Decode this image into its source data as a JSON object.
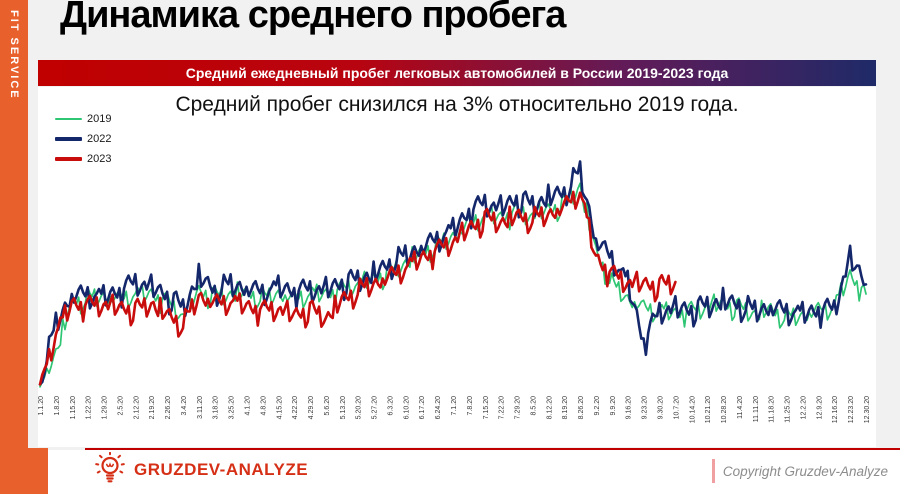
{
  "sidebar": {
    "brand": "FIT SERVICE"
  },
  "header": {
    "title": "Динамика среднего пробега"
  },
  "banner": {
    "text": "Средний ежедневный пробег легковых автомобилей в России 2019-2023 года"
  },
  "subtitle": "Средний пробег снизился на 3% относительно 2019 года.",
  "chart_data": {
    "type": "line",
    "title": "Средний ежедневный пробег легковых автомобилей в России 2019-2023 года",
    "x_labels": [
      "1.1.20",
      "1.8.20",
      "1.15.20",
      "1.22.20",
      "1.29.20",
      "2.5.20",
      "2.12.20",
      "2.19.20",
      "2.26.20",
      "3.4.20",
      "3.11.20",
      "3.18.20",
      "3.25.20",
      "4.1.20",
      "4.8.20",
      "4.15.20",
      "4.22.20",
      "4.29.20",
      "5.6.20",
      "5.13.20",
      "5.20.20",
      "5.27.20",
      "6.3.20",
      "6.10.20",
      "6.17.20",
      "6.24.20",
      "7.1.20",
      "7.8.20",
      "7.15.20",
      "7.22.20",
      "7.29.20",
      "8.5.20",
      "8.12.20",
      "8.19.20",
      "8.26.20",
      "9.2.20",
      "9.9.20",
      "9.16.20",
      "9.23.20",
      "9.30.20",
      "10.7.20",
      "10.14.20",
      "10.21.20",
      "10.28.20",
      "11.4.20",
      "11.11.20",
      "11.18.20",
      "11.25.20",
      "12.2.20",
      "12.9.20",
      "12.16.20",
      "12.23.20",
      "12.30.20"
    ],
    "x_tick_interval": "weekly",
    "y_axis_visible": false,
    "grid": false,
    "ylim": [
      0,
      100
    ],
    "legend_position": "top-left",
    "series": [
      {
        "name": "2019",
        "color": "#2EC573",
        "weekly_values": [
          1,
          16,
          36,
          38,
          39,
          38,
          40,
          40,
          37,
          31,
          41,
          39,
          40,
          40,
          38,
          40,
          38,
          40,
          40,
          42,
          44,
          46,
          49,
          53,
          57,
          60,
          64,
          69,
          73,
          72,
          74,
          73,
          75,
          77,
          85,
          57,
          44,
          38,
          34,
          33,
          32,
          33,
          35,
          36,
          34,
          32,
          33,
          30,
          31,
          33,
          35,
          48,
          40
        ]
      },
      {
        "name": "2022",
        "color": "#14276B",
        "weekly_values": [
          2,
          28,
          39,
          40,
          39,
          41,
          45,
          43,
          39,
          34,
          47,
          41,
          44,
          42,
          41,
          43,
          41,
          42,
          42,
          44,
          46,
          48,
          52,
          56,
          59,
          63,
          67,
          74,
          78,
          76,
          79,
          77,
          80,
          82,
          91,
          62,
          55,
          45,
          20,
          33,
          34,
          33,
          35,
          37,
          35,
          33,
          34,
          33,
          32,
          33,
          34,
          55,
          44
        ]
      },
      {
        "name": "2023",
        "color": "#C90D0D",
        "weekly_values": [
          2,
          24,
          36,
          35,
          36,
          34,
          33,
          36,
          31,
          27,
          39,
          36,
          37,
          35,
          33,
          34,
          31,
          33,
          30,
          37,
          41,
          44,
          47,
          51,
          55,
          58,
          62,
          67,
          71,
          70,
          72,
          71,
          73,
          76,
          83,
          55,
          48,
          45,
          44,
          43,
          45,
          null,
          null,
          null,
          null,
          null,
          null,
          null,
          null,
          null,
          null,
          null,
          null
        ]
      }
    ]
  },
  "footer": {
    "logo_icon": "lightbulb-icon",
    "logo_text": "GRUZDEV-ANALYZE",
    "copyright": "Copyright Gruzdev-Analyze"
  },
  "colors": {
    "accent_orange": "#E8612C",
    "banner_red": "#C00000",
    "banner_navy": "#1F2A68",
    "logo_red": "#D52F16",
    "footer_line_red": "#C00000",
    "copyright_gray": "#8C8C8C"
  }
}
